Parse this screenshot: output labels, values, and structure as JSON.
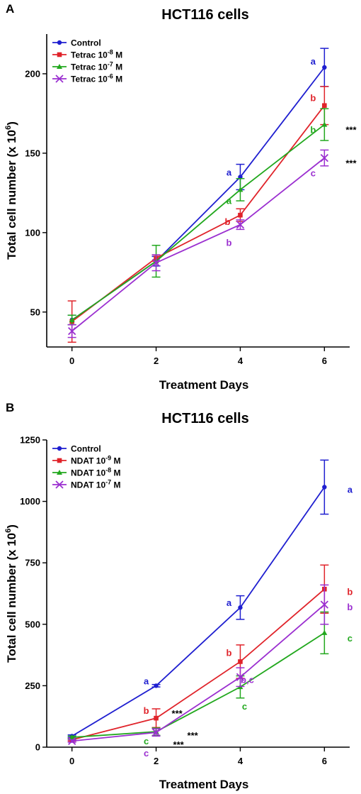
{
  "chart_data": [
    {
      "type": "line",
      "panel": "A",
      "title": "HCT116 cells",
      "xlabel": "Treatment Days",
      "ylabel": "Total cell number (x 10^6)",
      "ylabel_base": "Total cell number (x 10",
      "ylabel_sup": "6",
      "ylabel_end": ")",
      "x": [
        0,
        2,
        4,
        6
      ],
      "xlim": [
        -0.6,
        6.6
      ],
      "ylim": [
        28,
        225
      ],
      "yticks": [
        50,
        100,
        150,
        200
      ],
      "grid": false,
      "legend": "top-left",
      "series": [
        {
          "name": "Control",
          "label": "Control",
          "exp": "",
          "unit": "",
          "marker": "circle",
          "color": "#1f1fd0",
          "values": [
            45,
            82,
            135,
            204
          ],
          "errors": [
            3,
            3,
            8,
            12
          ],
          "letters": [
            "",
            "",
            "a",
            "a"
          ]
        },
        {
          "name": "Tetrac 10-8 M",
          "label": "Tetrac 10",
          "exp": "-8",
          "unit": " M",
          "marker": "square",
          "color": "#e0232a",
          "values": [
            44,
            84,
            111,
            180
          ],
          "errors": [
            13,
            2,
            4,
            12
          ],
          "letters": [
            "",
            "",
            "b",
            "b"
          ]
        },
        {
          "name": "Tetrac 10-7 M",
          "label": "Tetrac 10",
          "exp": "-7",
          "unit": " M",
          "marker": "triangle",
          "color": "#22a81e",
          "values": [
            45,
            82,
            127,
            168
          ],
          "errors": [
            3,
            10,
            7,
            10
          ],
          "letters": [
            "",
            "",
            "a",
            "b"
          ]
        },
        {
          "name": "Tetrac 10-6 M",
          "label": "Tetrac 10",
          "exp": "-6",
          "unit": " M",
          "marker": "x",
          "color": "#9b2fd0",
          "values": [
            38,
            81,
            105,
            147
          ],
          "errors": [
            4,
            5,
            3,
            5
          ],
          "letters": [
            "",
            "",
            "b",
            "c"
          ]
        }
      ],
      "significance": [
        {
          "x": 6,
          "y": 168,
          "text": "***"
        },
        {
          "x": 6,
          "y": 147,
          "text": "***"
        }
      ]
    },
    {
      "type": "line",
      "panel": "B",
      "title": "HCT116 cells",
      "xlabel": "Treatment Days",
      "ylabel": "Total cell number (x 10^6)",
      "ylabel_base": "Total cell number (x 10",
      "ylabel_sup": "6",
      "ylabel_end": ")",
      "x": [
        0,
        2,
        4,
        6
      ],
      "xlim": [
        -0.6,
        6.6
      ],
      "ylim": [
        0,
        1250
      ],
      "yticks": [
        0,
        250,
        500,
        750,
        1000,
        1250
      ],
      "grid": false,
      "legend": "top-left",
      "series": [
        {
          "name": "Control",
          "label": "Control",
          "exp": "",
          "unit": "",
          "marker": "circle",
          "color": "#1f1fd0",
          "values": [
            45,
            250,
            568,
            1058
          ],
          "errors": [
            5,
            5,
            48,
            110
          ],
          "letters": [
            "",
            "a",
            "a",
            "a"
          ]
        },
        {
          "name": "NDAT 10-9 M",
          "label": "NDAT 10",
          "exp": "-9",
          "unit": " M",
          "marker": "square",
          "color": "#e0232a",
          "values": [
            30,
            118,
            348,
            643
          ],
          "errors": [
            5,
            38,
            68,
            98
          ],
          "letters": [
            "",
            "b",
            "b",
            "b"
          ]
        },
        {
          "name": "NDAT 10-8 M",
          "label": "NDAT 10",
          "exp": "-8",
          "unit": " M",
          "marker": "triangle",
          "color": "#22a81e",
          "values": [
            40,
            63,
            245,
            465
          ],
          "errors": [
            5,
            15,
            45,
            85
          ],
          "letters": [
            "",
            "c",
            "c",
            "c"
          ]
        },
        {
          "name": "NDAT 10-7 M",
          "label": "NDAT 10",
          "exp": "-7",
          "unit": " M",
          "marker": "x",
          "color": "#9b2fd0",
          "values": [
            25,
            60,
            285,
            580
          ],
          "errors": [
            5,
            15,
            38,
            80
          ],
          "letters": [
            "",
            "c",
            "b,c",
            "b"
          ]
        }
      ],
      "significance": [
        {
          "x": 2,
          "y": 118,
          "text": "***"
        },
        {
          "x": 2,
          "y": 63,
          "text": "***"
        },
        {
          "x": 2,
          "y": 60,
          "text": "***"
        }
      ]
    }
  ]
}
